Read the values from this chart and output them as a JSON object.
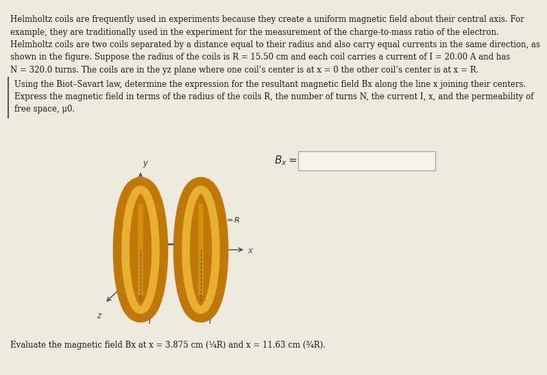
{
  "bg_color": "#eeeae0",
  "text_color": "#1a1a1a",
  "line1": "Helmholtz coils are frequently used in experiments because they create a uniform magnetic field about their central axis. For",
  "line2": "example, they are traditionally used in the experiment for the measurement of the charge-to-mass ratio of the electron.",
  "line3": "Helmholtz coils are two coils separated by a distance equal to their radius and also carry equal currents in the same direction, as",
  "line4": "shown in the figure. Suppose the radius of the coils is R = 15.50 cm and each coil carries a current of I = 20.00 A and has",
  "line5": "N = 320.0 turns. The coils are in the yz plane where one coil’s center is at x = 0 the other coil’s center is at x = R.",
  "line6": "Using the Biot–Savart law, determine the expression for the resultant magnetic field Bx along the line x joining their centers.",
  "line7": "Express the magnetic field in terms of the radius of the coils R, the number of turns N, the current I, x, and the permeability of",
  "line8": "free space, μ0.",
  "bottom_text": "Evaluate the magnetic field Bx at x = 3.875 cm (¼R) and x = 11.63 cm (¾R).",
  "coil_gold_dark": "#c07808",
  "coil_gold_mid": "#d4900a",
  "coil_gold_light": "#e8b030",
  "coil_gray_dark": "#909090",
  "coil_gray_mid": "#c0c0c0",
  "coil_gray_light": "#d8d8d8",
  "arrow_color": "#1155bb",
  "axis_color": "#444444",
  "text_dark": "#2a2a2a"
}
